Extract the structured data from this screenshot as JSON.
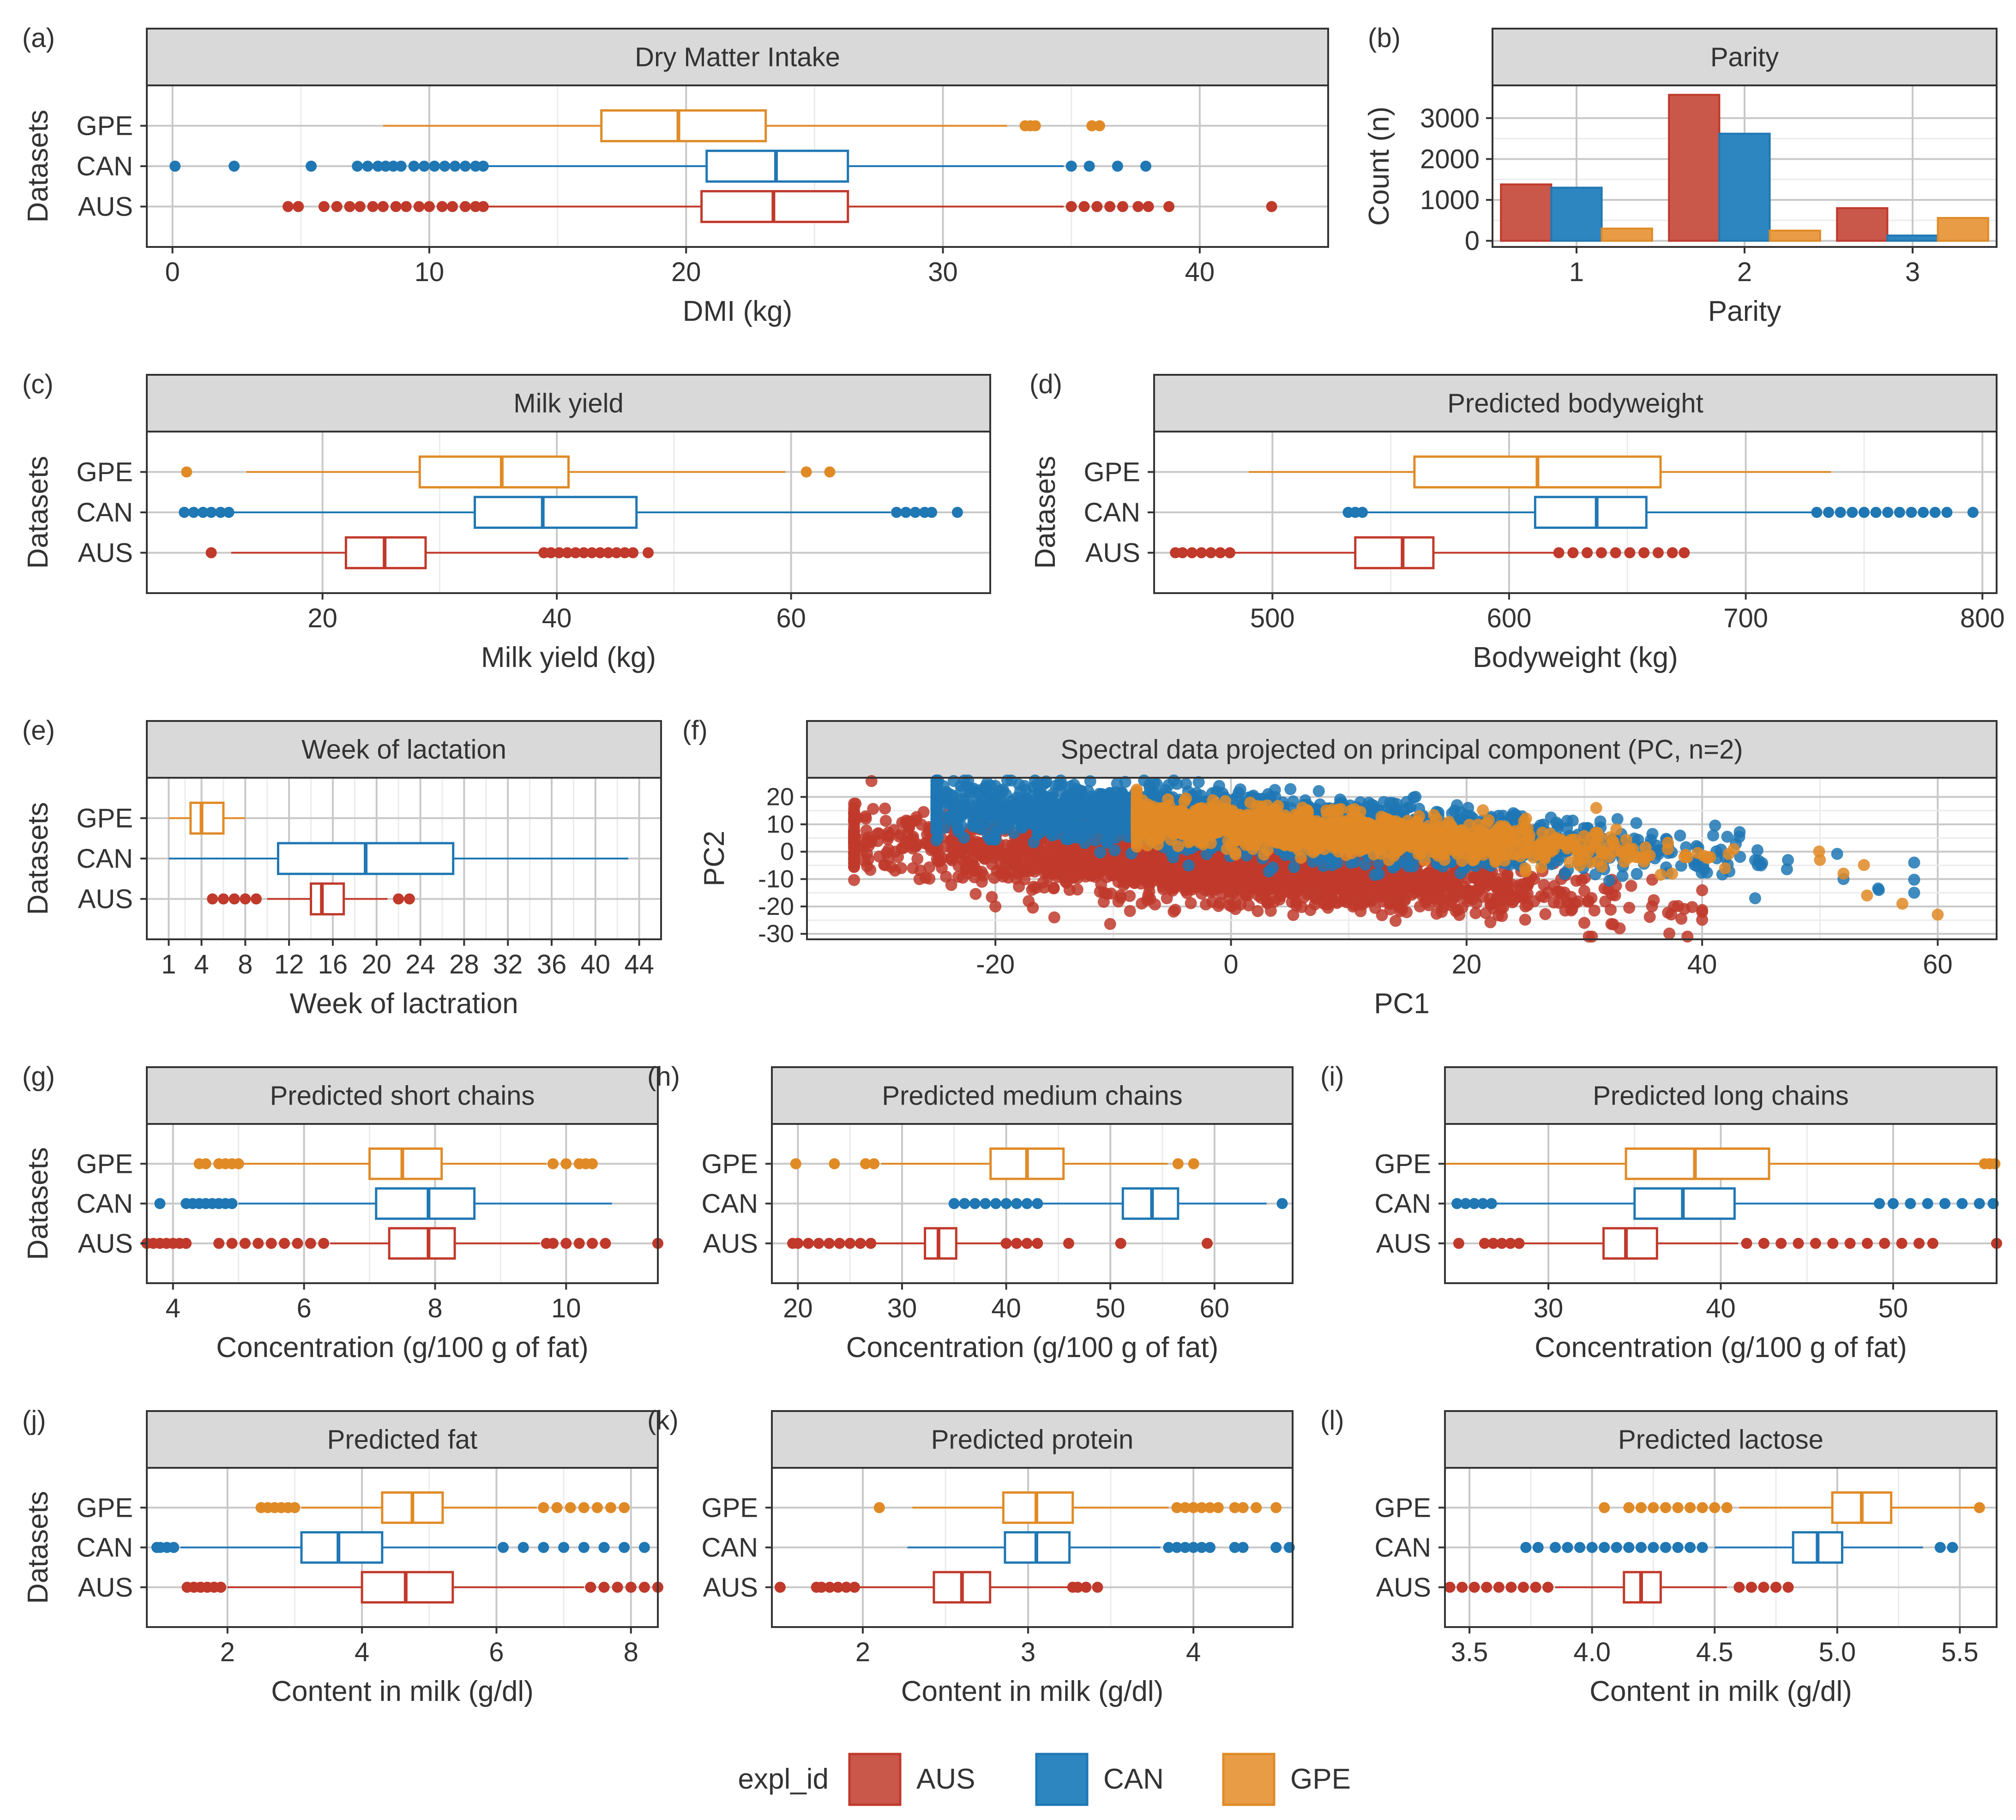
{
  "colors": {
    "AUS": "#C0392B",
    "CAN": "#1F77B4",
    "GPE": "#E08A26",
    "AUS_fill": "#C9574A",
    "CAN_fill": "#2E86C1",
    "GPE_fill": "#E89C45",
    "strip": "#D9D9D9",
    "grid_major": "#C8C8C8",
    "grid_minor": "#EBEBEB",
    "text": "#333333"
  },
  "legend": {
    "title": "expl_id",
    "items": [
      "AUS",
      "CAN",
      "GPE"
    ]
  },
  "chart_data": [
    {
      "id": "a",
      "tag": "(a)",
      "type": "box",
      "title": "Dry Matter Intake",
      "xlabel": "DMI (kg)",
      "ylabel": "Datasets",
      "xlim": [
        -1,
        45
      ],
      "xticks": [
        0,
        10,
        20,
        30,
        40
      ],
      "categories": [
        "GPE",
        "CAN",
        "AUS"
      ],
      "boxes": {
        "GPE": {
          "whisker_low": 8.2,
          "q1": 16.7,
          "median": 19.7,
          "q3": 23.1,
          "whisker_high": 32.5,
          "outliers": [
            33.2,
            33.4,
            33.6,
            35.8,
            36.1
          ]
        },
        "CAN": {
          "whisker_low": 12.3,
          "q1": 20.8,
          "median": 23.5,
          "q3": 26.3,
          "whisker_high": 34.7,
          "outliers": [
            0.1,
            2.4,
            5.4,
            7.2,
            7.6,
            8.0,
            8.3,
            8.6,
            8.9,
            9.4,
            9.8,
            10.2,
            10.6,
            11.0,
            11.4,
            11.8,
            12.1,
            35.0,
            35.7,
            36.8,
            37.9
          ]
        },
        "AUS": {
          "whisker_low": 12.3,
          "q1": 20.6,
          "median": 23.4,
          "q3": 26.3,
          "whisker_high": 34.7,
          "outliers": [
            4.5,
            4.9,
            5.9,
            6.4,
            6.9,
            7.3,
            7.8,
            8.2,
            8.7,
            9.1,
            9.6,
            10.0,
            10.5,
            10.9,
            11.4,
            11.8,
            12.1,
            35.0,
            35.5,
            36.0,
            36.5,
            37.0,
            37.6,
            38.0,
            38.8,
            42.8
          ]
        }
      }
    },
    {
      "id": "b",
      "tag": "(b)",
      "type": "bar",
      "title": "Parity",
      "xlabel": "Parity",
      "ylabel": "Count (n)",
      "ylim": [
        -150,
        3800
      ],
      "yticks": [
        0,
        1000,
        2000,
        3000
      ],
      "categories": [
        "1",
        "2",
        "3"
      ],
      "series": [
        {
          "name": "AUS",
          "values": [
            1380,
            3570,
            800
          ]
        },
        {
          "name": "CAN",
          "values": [
            1300,
            2620,
            130
          ]
        },
        {
          "name": "GPE",
          "values": [
            300,
            250,
            560
          ]
        }
      ]
    },
    {
      "id": "c",
      "tag": "(c)",
      "type": "box",
      "title": "Milk yield",
      "xlabel": "Milk yield (kg)",
      "ylabel": "Datasets",
      "xlim": [
        5,
        77
      ],
      "xticks": [
        20,
        40,
        60
      ],
      "categories": [
        "GPE",
        "CAN",
        "AUS"
      ],
      "boxes": {
        "GPE": {
          "whisker_low": 13.5,
          "q1": 28.3,
          "median": 35.3,
          "q3": 41.0,
          "whisker_high": 59.5,
          "outliers": [
            8.4,
            61.3,
            63.3
          ]
        },
        "CAN": {
          "whisker_low": 12.0,
          "q1": 33.0,
          "median": 38.8,
          "q3": 46.8,
          "whisker_high": 68.5,
          "outliers": [
            8.2,
            9.0,
            9.8,
            10.5,
            11.3,
            12.0,
            69.0,
            69.8,
            70.6,
            71.4,
            72.0,
            74.2
          ]
        },
        "AUS": {
          "whisker_low": 12.2,
          "q1": 22.0,
          "median": 25.3,
          "q3": 28.8,
          "whisker_high": 38.5,
          "outliers": [
            10.5,
            38.9,
            39.5,
            40.2,
            40.9,
            41.6,
            42.3,
            43.0,
            43.7,
            44.4,
            45.1,
            45.8,
            46.5,
            47.8
          ]
        }
      }
    },
    {
      "id": "d",
      "tag": "(d)",
      "type": "box",
      "title": "Predicted bodyweight",
      "xlabel": "Bodyweight (kg)",
      "ylabel": "Datasets",
      "xlim": [
        450,
        806
      ],
      "xticks": [
        500,
        600,
        700,
        800
      ],
      "categories": [
        "GPE",
        "CAN",
        "AUS"
      ],
      "boxes": {
        "GPE": {
          "whisker_low": 490,
          "q1": 560,
          "median": 612,
          "q3": 664,
          "whisker_high": 736,
          "outliers": []
        },
        "CAN": {
          "whisker_low": 540,
          "q1": 611,
          "median": 637,
          "q3": 658,
          "whisker_high": 728,
          "outliers": [
            532,
            535,
            538,
            730,
            735,
            740,
            745,
            750,
            755,
            760,
            765,
            770,
            775,
            780,
            785,
            796
          ]
        },
        "AUS": {
          "whisker_low": 484,
          "q1": 535,
          "median": 555,
          "q3": 568,
          "whisker_high": 619,
          "outliers": [
            459,
            462,
            466,
            470,
            474,
            478,
            482,
            621,
            627,
            633,
            639,
            645,
            651,
            657,
            663,
            669,
            674
          ]
        }
      }
    },
    {
      "id": "e",
      "tag": "(e)",
      "type": "box",
      "title": "Week of lactation",
      "xlabel": "Week of lactration",
      "ylabel": "Datasets",
      "xlim": [
        -1,
        46
      ],
      "xticks": [
        1,
        4,
        8,
        12,
        16,
        20,
        24,
        28,
        32,
        36,
        40,
        44
      ],
      "categories": [
        "GPE",
        "CAN",
        "AUS"
      ],
      "boxes": {
        "GPE": {
          "whisker_low": 1,
          "q1": 3,
          "median": 4,
          "q3": 6,
          "whisker_high": 8,
          "outliers": []
        },
        "CAN": {
          "whisker_low": 1,
          "q1": 11,
          "median": 19,
          "q3": 27,
          "whisker_high": 43,
          "outliers": []
        },
        "AUS": {
          "whisker_low": 10,
          "q1": 14,
          "median": 15,
          "q3": 17,
          "whisker_high": 21,
          "outliers": [
            5,
            6,
            7,
            8,
            9,
            22,
            23
          ]
        }
      }
    },
    {
      "id": "f",
      "tag": "(f)",
      "type": "scatter",
      "title": "Spectral data projected on principal component (PC, n=2)",
      "xlabel": "PC1",
      "ylabel": "PC2",
      "xlim": [
        -36,
        65
      ],
      "ylim": [
        -32,
        27
      ],
      "xticks": [
        -20,
        0,
        20,
        40,
        60
      ],
      "yticks": [
        -30,
        -20,
        -10,
        0,
        10,
        20
      ],
      "series": [
        {
          "name": "AUS",
          "center": [
            -2,
            -5
          ],
          "slope": -0.33,
          "x_range": [
            -32,
            40
          ],
          "spread": 6,
          "count": 2400,
          "extremes": [
            [
              -31,
              3
            ],
            [
              -28,
              -6
            ],
            [
              -20,
              -20
            ],
            [
              -15,
              -24
            ],
            [
              25,
              -20
            ],
            [
              30,
              -26
            ],
            [
              33,
              -28
            ],
            [
              40,
              -22
            ]
          ]
        },
        {
          "name": "CAN",
          "center": [
            2,
            10
          ],
          "slope": -0.28,
          "x_range": [
            -25,
            58
          ],
          "spread": 5,
          "count": 2400,
          "extremes": [
            [
              -25,
              18
            ],
            [
              -20,
              24
            ],
            [
              -13,
              20
            ],
            [
              45,
              -5
            ],
            [
              52,
              -10
            ],
            [
              55,
              -14
            ],
            [
              58,
              -15
            ]
          ]
        },
        {
          "name": "GPE",
          "center": [
            5,
            8
          ],
          "slope": -0.27,
          "x_range": [
            -8,
            60
          ],
          "spread": 3.5,
          "count": 1500,
          "extremes": [
            [
              50,
              -3
            ],
            [
              52,
              -8
            ],
            [
              54,
              -16
            ],
            [
              57,
              -19
            ],
            [
              60,
              -23
            ]
          ]
        }
      ]
    },
    {
      "id": "g",
      "tag": "(g)",
      "type": "box",
      "title": "Predicted short chains",
      "xlabel": "Concentration (g/100 g of fat)",
      "ylabel": "Datasets",
      "xlim": [
        3.6,
        11.4
      ],
      "xticks": [
        4,
        6,
        8,
        10
      ],
      "categories": [
        "GPE",
        "CAN",
        "AUS"
      ],
      "boxes": {
        "GPE": {
          "whisker_low": 5.0,
          "q1": 7.0,
          "median": 7.5,
          "q3": 8.1,
          "whisker_high": 9.7,
          "outliers": [
            4.4,
            4.5,
            4.7,
            4.8,
            4.9,
            5.0,
            9.8,
            10.0,
            10.2,
            10.3,
            10.4
          ]
        },
        "CAN": {
          "whisker_low": 5.0,
          "q1": 7.1,
          "median": 7.9,
          "q3": 8.6,
          "whisker_high": 10.7,
          "outliers": [
            3.8,
            4.2,
            4.3,
            4.4,
            4.5,
            4.6,
            4.7,
            4.8,
            4.9
          ]
        },
        "AUS": {
          "whisker_low": 6.4,
          "q1": 7.3,
          "median": 7.9,
          "q3": 8.3,
          "whisker_high": 9.6,
          "outliers": [
            3.6,
            3.7,
            3.8,
            3.9,
            4.0,
            4.1,
            4.2,
            4.7,
            4.9,
            5.1,
            5.3,
            5.5,
            5.7,
            5.9,
            6.1,
            6.3,
            9.7,
            9.8,
            10.0,
            10.2,
            10.4,
            10.6,
            11.4
          ]
        }
      }
    },
    {
      "id": "h",
      "tag": "(h)",
      "type": "box",
      "title": "Predicted medium chains",
      "xlabel": "Concentration (g/100 g of fat)",
      "ylabel": "Datasets",
      "xlim": [
        17.5,
        67.5
      ],
      "xticks": [
        20,
        30,
        40,
        50,
        60
      ],
      "categories": [
        "GPE",
        "CAN",
        "AUS"
      ],
      "boxes": {
        "GPE": {
          "whisker_low": 28,
          "q1": 38.5,
          "median": 42,
          "q3": 45.5,
          "whisker_high": 55.5,
          "outliers": [
            19.8,
            23.5,
            26.5,
            27.3,
            56.5,
            58
          ]
        },
        "CAN": {
          "whisker_low": 43.5,
          "q1": 51.2,
          "median": 54,
          "q3": 56.5,
          "whisker_high": 65,
          "outliers": [
            35,
            36,
            37,
            38,
            39,
            40,
            41,
            42,
            43,
            66.5
          ]
        },
        "AUS": {
          "whisker_low": 27.5,
          "q1": 32.2,
          "median": 33.5,
          "q3": 35.2,
          "whisker_high": 39.5,
          "outliers": [
            19.5,
            20,
            21,
            22,
            23,
            24,
            25,
            26,
            27,
            40,
            41,
            42,
            43,
            46,
            51,
            59.3
          ]
        }
      }
    },
    {
      "id": "i",
      "tag": "(i)",
      "type": "box",
      "title": "Predicted long chains",
      "xlabel": "Concentration (g/100 g of fat)",
      "ylabel": "Datasets",
      "xlim": [
        24,
        56
      ],
      "xticks": [
        30,
        40,
        50
      ],
      "categories": [
        "GPE",
        "CAN",
        "AUS"
      ],
      "boxes": {
        "GPE": {
          "whisker_low": 24,
          "q1": 34.5,
          "median": 38.5,
          "q3": 42.8,
          "whisker_high": 55,
          "outliers": [
            55.3,
            55.6,
            55.9
          ]
        },
        "CAN": {
          "whisker_low": 27,
          "q1": 35,
          "median": 37.8,
          "q3": 40.8,
          "whisker_high": 49,
          "outliers": [
            24.7,
            25.2,
            25.7,
            26.2,
            26.7,
            49.2,
            50,
            51,
            52,
            53,
            54,
            55,
            55.8
          ]
        },
        "AUS": {
          "whisker_low": 28.5,
          "q1": 33.2,
          "median": 34.5,
          "q3": 36.3,
          "whisker_high": 41,
          "outliers": [
            24.8,
            26.3,
            26.8,
            27.3,
            27.8,
            28.3,
            41.5,
            42.5,
            43.5,
            44.5,
            45.5,
            46.5,
            47.5,
            48.5,
            49.5,
            50.5,
            51.5,
            52.3,
            56
          ]
        }
      }
    },
    {
      "id": "j",
      "tag": "(j)",
      "type": "box",
      "title": "Predicted fat",
      "xlabel": "Content in milk (g/dl)",
      "ylabel": "Datasets",
      "xlim": [
        0.8,
        8.4
      ],
      "xticks": [
        2,
        4,
        6,
        8
      ],
      "categories": [
        "GPE",
        "CAN",
        "AUS"
      ],
      "boxes": {
        "GPE": {
          "whisker_low": 3.1,
          "q1": 4.3,
          "median": 4.75,
          "q3": 5.2,
          "whisker_high": 6.6,
          "outliers": [
            2.5,
            2.6,
            2.7,
            2.8,
            2.9,
            3.0,
            6.7,
            6.9,
            7.1,
            7.3,
            7.5,
            7.7,
            7.9
          ]
        },
        "CAN": {
          "whisker_low": 1.3,
          "q1": 3.1,
          "median": 3.65,
          "q3": 4.3,
          "whisker_high": 6.0,
          "outliers": [
            0.95,
            1.0,
            1.1,
            1.2,
            6.1,
            6.4,
            6.7,
            7.0,
            7.3,
            7.6,
            7.9,
            8.2
          ]
        },
        "AUS": {
          "whisker_low": 2.0,
          "q1": 4.0,
          "median": 4.65,
          "q3": 5.35,
          "whisker_high": 7.3,
          "outliers": [
            1.4,
            1.5,
            1.6,
            1.7,
            1.8,
            1.9,
            7.4,
            7.6,
            7.8,
            8.0,
            8.2,
            8.4
          ]
        }
      }
    },
    {
      "id": "k",
      "tag": "(k)",
      "type": "box",
      "title": "Predicted protein",
      "xlabel": "Content in milk (g/dl)",
      "ylabel": "Datasets",
      "xlim": [
        1.45,
        4.6
      ],
      "xticks": [
        2,
        3,
        4
      ],
      "categories": [
        "GPE",
        "CAN",
        "AUS"
      ],
      "boxes": {
        "GPE": {
          "whisker_low": 2.3,
          "q1": 2.85,
          "median": 3.05,
          "q3": 3.27,
          "whisker_high": 3.85,
          "outliers": [
            2.1,
            3.9,
            3.95,
            4.0,
            4.05,
            4.1,
            4.15,
            4.25,
            4.3,
            4.38,
            4.5
          ]
        },
        "CAN": {
          "whisker_low": 2.27,
          "q1": 2.86,
          "median": 3.05,
          "q3": 3.25,
          "whisker_high": 3.8,
          "outliers": [
            3.85,
            3.9,
            3.95,
            4.0,
            4.05,
            4.1,
            4.25,
            4.3,
            4.5,
            4.58
          ]
        },
        "AUS": {
          "whisker_low": 1.95,
          "q1": 2.43,
          "median": 2.6,
          "q3": 2.77,
          "whisker_high": 3.25,
          "outliers": [
            1.5,
            1.72,
            1.75,
            1.8,
            1.85,
            1.9,
            1.95,
            3.27,
            3.3,
            3.35,
            3.42
          ]
        }
      }
    },
    {
      "id": "l",
      "tag": "(l)",
      "type": "box",
      "title": "Predicted lactose",
      "xlabel": "Content in milk (g/dl)",
      "ylabel": "Datasets",
      "xlim": [
        3.4,
        5.65
      ],
      "xticks": [
        3.5,
        4.0,
        4.5,
        5.0,
        5.5
      ],
      "xtick_labels": [
        "3.5",
        "4.0",
        "4.5",
        "5.0",
        "5.5"
      ],
      "categories": [
        "GPE",
        "CAN",
        "AUS"
      ],
      "boxes": {
        "GPE": {
          "whisker_low": 4.6,
          "q1": 4.98,
          "median": 5.1,
          "q3": 5.22,
          "whisker_high": 5.57,
          "outliers": [
            4.05,
            4.15,
            4.2,
            4.25,
            4.3,
            4.35,
            4.4,
            4.45,
            4.5,
            4.55,
            5.58
          ]
        },
        "CAN": {
          "whisker_low": 4.5,
          "q1": 4.82,
          "median": 4.92,
          "q3": 5.02,
          "whisker_high": 5.35,
          "outliers": [
            3.73,
            3.78,
            3.85,
            3.9,
            3.95,
            4.0,
            4.05,
            4.1,
            4.15,
            4.2,
            4.25,
            4.3,
            4.35,
            4.4,
            4.45,
            5.42,
            5.47
          ]
        },
        "AUS": {
          "whisker_low": 3.85,
          "q1": 4.13,
          "median": 4.2,
          "q3": 4.28,
          "whisker_high": 4.55,
          "outliers": [
            3.42,
            3.47,
            3.52,
            3.57,
            3.62,
            3.67,
            3.72,
            3.77,
            3.82,
            4.6,
            4.65,
            4.7,
            4.75,
            4.8
          ]
        }
      }
    }
  ]
}
